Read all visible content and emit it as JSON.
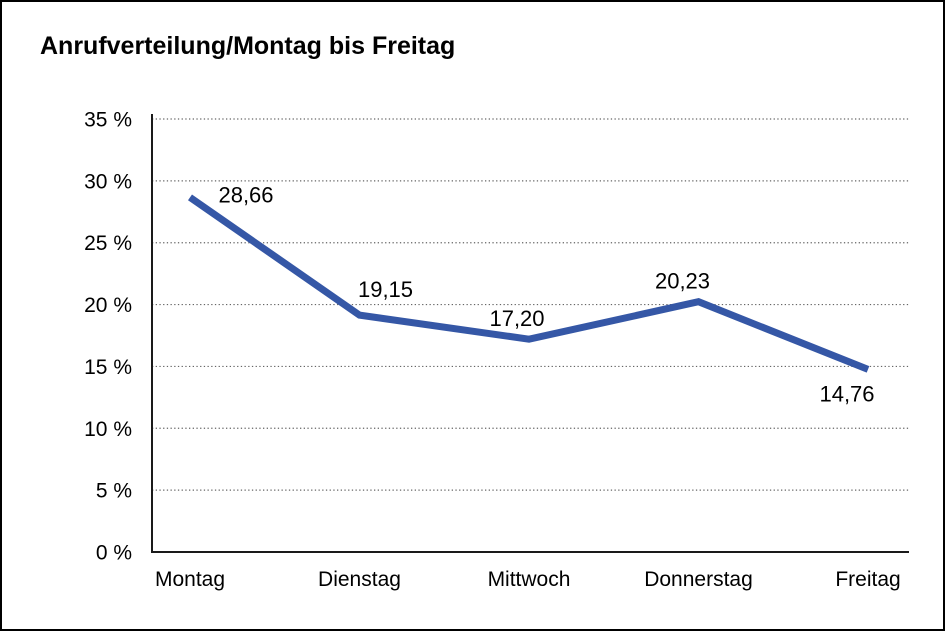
{
  "window": {
    "title": "Anrufverteilung/Montag bis Freitag"
  },
  "chart_data": {
    "type": "line",
    "title": "Anrufverteilung/Montag bis Freitag",
    "categories": [
      "Montag",
      "Dienstag",
      "Mittwoch",
      "Donnerstag",
      "Freitag"
    ],
    "values": [
      28.66,
      19.15,
      17.2,
      20.23,
      14.76
    ],
    "data_labels": [
      "28,66",
      "19,15",
      "17,20",
      "20,23",
      "14,76"
    ],
    "xlabel": "",
    "ylabel": "",
    "ylim": [
      0,
      35
    ],
    "ytick_step": 5,
    "ytick_labels": [
      "35 %",
      "30 %",
      "25 %",
      "20 %",
      "15 %",
      "10 %",
      "5 %",
      "0 %"
    ],
    "grid": "horizontal-dotted",
    "legend": "none",
    "colors": {
      "line": "#3557A6",
      "text": "#000000",
      "axis": "#1a1a1a",
      "grid": "#666666",
      "background": "#ffffff",
      "border": "#000000"
    }
  }
}
